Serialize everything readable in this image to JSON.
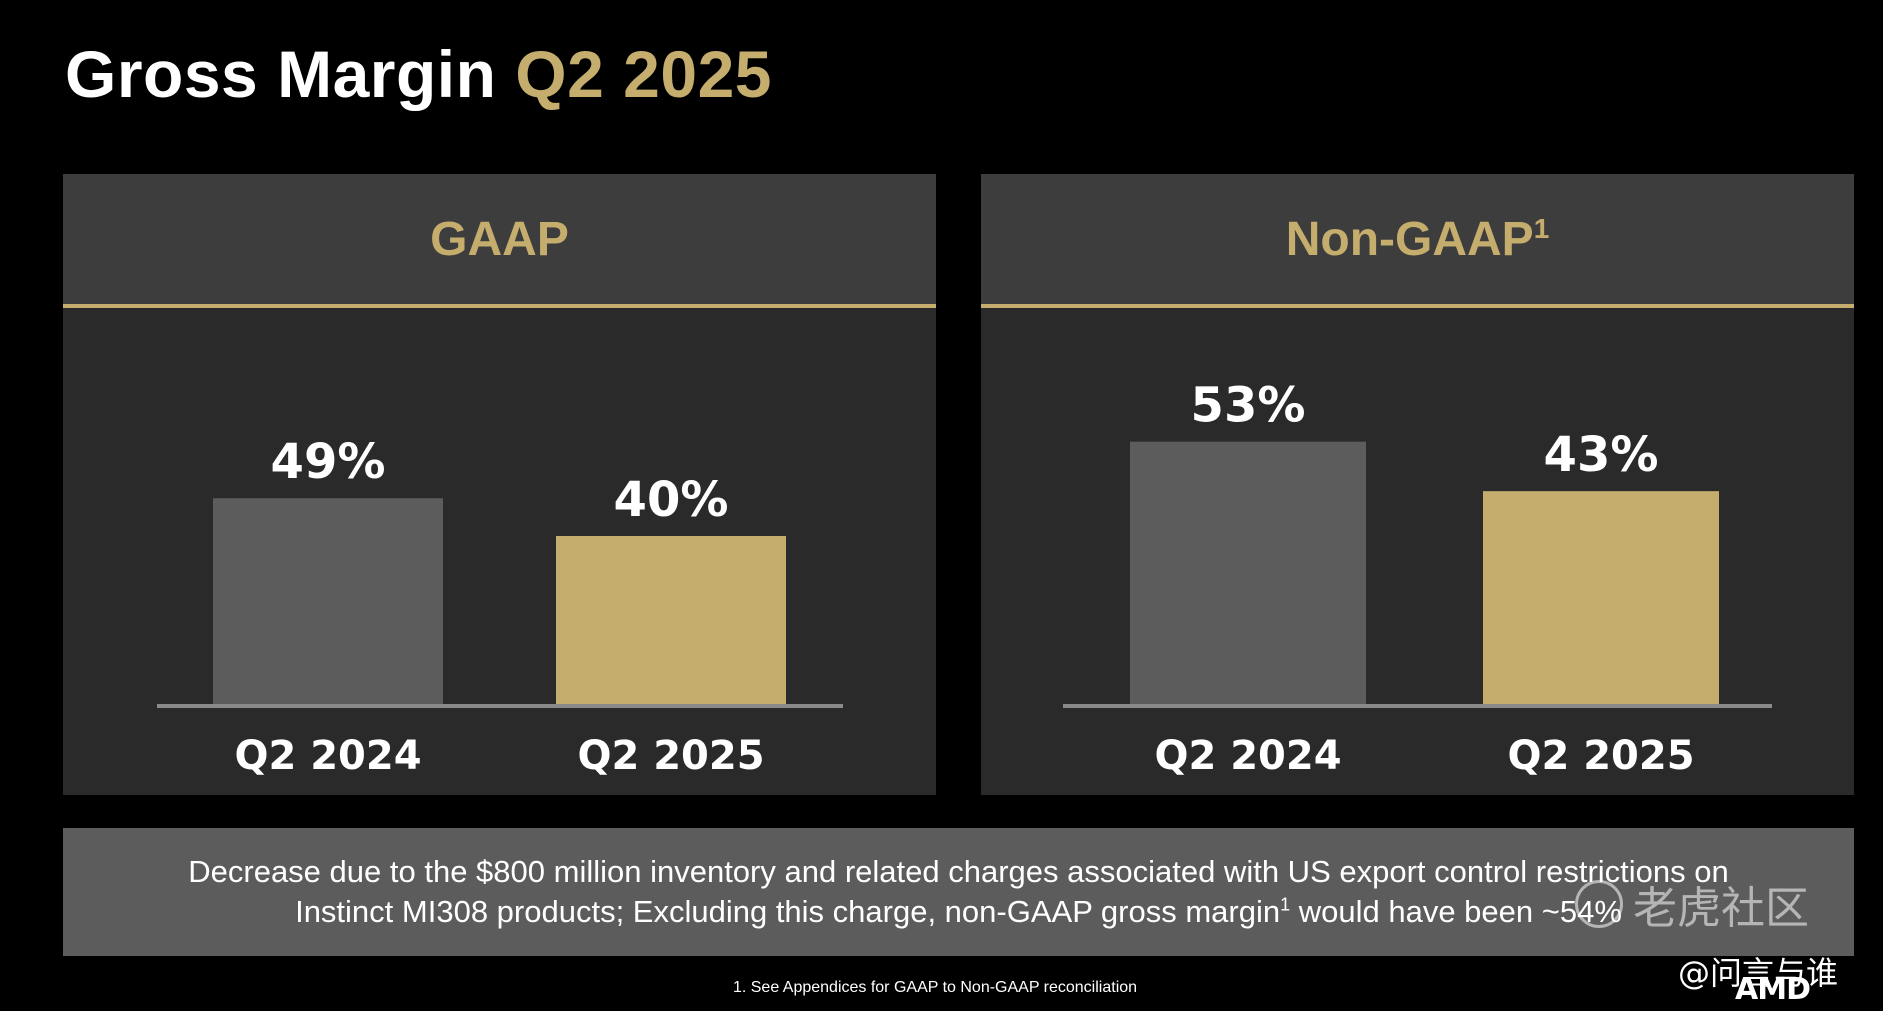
{
  "title": {
    "main": "Gross Margin",
    "accent": "Q2 2025"
  },
  "colors": {
    "accent": "#c4ad6d",
    "bar_prior": "#5c5c5c",
    "bar_current": "#c4ad6d",
    "panel": "#2a2a2a",
    "header": "#3d3d3d"
  },
  "panels": [
    {
      "header": "GAAP",
      "superscript": ""
    },
    {
      "header": "Non-GAAP",
      "superscript": "1"
    }
  ],
  "chart_data": [
    {
      "type": "bar",
      "title": "GAAP",
      "categories": [
        "Q2 2024",
        "Q2 2025"
      ],
      "values": [
        49,
        40
      ],
      "value_labels": [
        "49%",
        "40%"
      ],
      "unit": "%",
      "ylim": [
        0,
        100
      ],
      "grid": false,
      "legend": "none"
    },
    {
      "type": "bar",
      "title": "Non-GAAP",
      "categories": [
        "Q2 2024",
        "Q2 2025"
      ],
      "values": [
        53,
        43
      ],
      "value_labels": [
        "53%",
        "43%"
      ],
      "unit": "%",
      "ylim": [
        0,
        100
      ],
      "grid": false,
      "legend": "none"
    }
  ],
  "note": {
    "line1": "Decrease due to the $800 million inventory and related charges associated with US export control restrictions on",
    "line2_a": "Instinct MI308 products; Excluding this charge, non-GAAP gross margin",
    "line2_sup": "1",
    "line2_b": " would have been ~54%"
  },
  "footnote": "1. See Appendices for GAAP to Non-GAAP reconciliation",
  "watermark": {
    "text": "老虎社区",
    "icon": "tiger-community-icon"
  },
  "handle": "@问言与谁",
  "logo": "AMD"
}
